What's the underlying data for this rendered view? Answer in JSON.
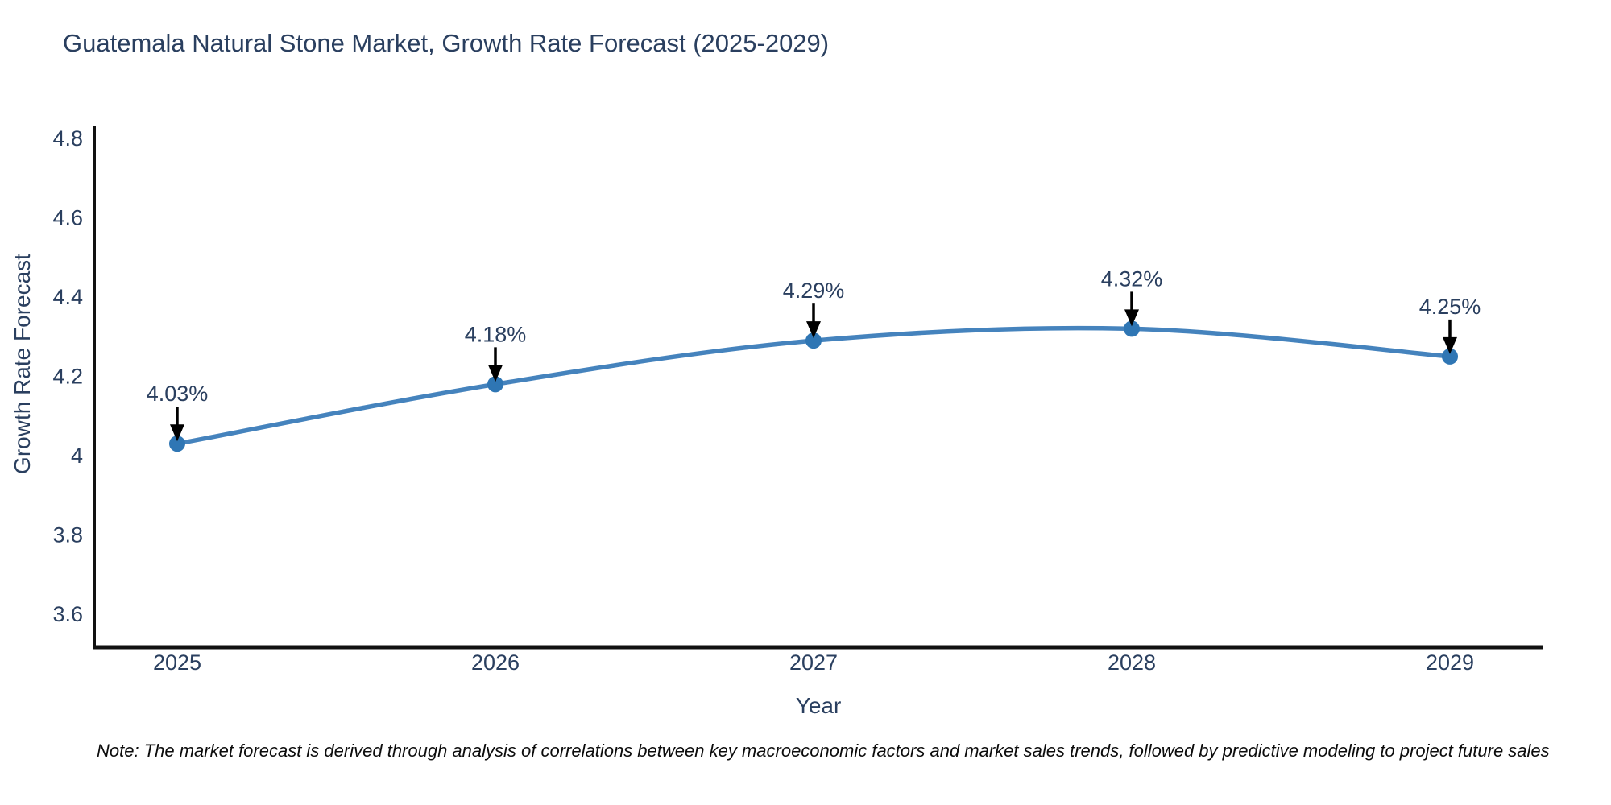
{
  "chart_data": {
    "type": "line",
    "title": "Guatemala Natural Stone Market, Growth Rate Forecast (2025-2029)",
    "xlabel": "Year",
    "ylabel": "Growth Rate Forecast",
    "categories": [
      2025,
      2026,
      2027,
      2028,
      2029
    ],
    "series": [
      {
        "name": "Growth Rate Forecast",
        "values": [
          4.03,
          4.18,
          4.29,
          4.32,
          4.25
        ]
      }
    ],
    "point_labels": [
      "4.03%",
      "4.18%",
      "4.29%",
      "4.32%",
      "4.25%"
    ],
    "xtick_labels": [
      "2025",
      "2026",
      "2027",
      "2028",
      "2029"
    ],
    "ytick_labels": [
      "4.8",
      "4.6",
      "4.4",
      "4.2",
      "4",
      "3.8",
      "3.6"
    ],
    "ytick_values": [
      4.8,
      4.6,
      4.4,
      4.2,
      4.0,
      3.8,
      3.6
    ],
    "ylim": [
      3.52,
      4.83
    ],
    "grid": false,
    "legend_position": "none",
    "line_shape": "spline",
    "annotation_style": "down-arrow-to-point",
    "colors": {
      "line": "#4583bd",
      "marker": "#2f76b4",
      "label_text": "#2a3f5f",
      "axis_line": "#111111",
      "arrow": "#000000",
      "background": "#ffffff",
      "note_text": "#0c0c0c"
    },
    "note": "Note: The market forecast is derived through analysis of correlations between key macroeconomic factors and market sales trends, followed by predictive modeling to project future sales"
  }
}
